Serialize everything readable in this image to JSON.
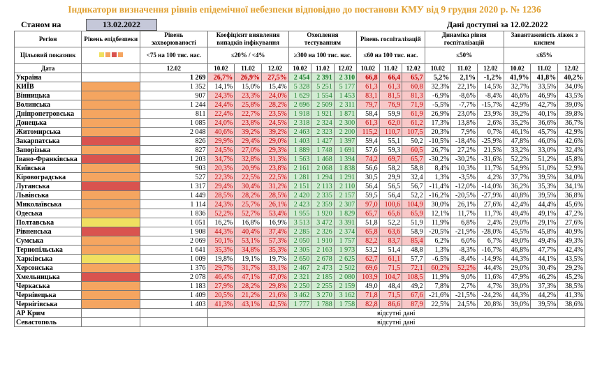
{
  "title": "Індикатори визначення рівнів епідемічної небезпеки відповідно до постанови КМУ від 9 грудня 2020 р. № 1236",
  "stanom_label": "Станом на",
  "stanom_date": "13.02.2022",
  "available_label": "Дані доступні за 12.02.2022",
  "headers": {
    "region": "Регіон",
    "indicator": "Цільовий показник",
    "date": "Дата",
    "level": "Рівень епідбезпеки",
    "incidence": "Рівень захворюваності",
    "incidence_target": "<75 на 100 тис. нас.",
    "detect": "Коефіцієнт виявлення випадків інфікування",
    "detect_target": "≤20% / <4%",
    "testing": "Охоплення тестуванням",
    "testing_target": "≥300 на 100 тис. нас.",
    "hosp": "Рівень госпіталізацій",
    "hosp_target": "≤60 на 100 тис. нас.",
    "dyn": "Динаміка рівня госпіталізацій",
    "dyn_target": "≤50%",
    "load": "Завантаженість ліжок з киснем",
    "load_target": "≤65%",
    "d1": "12.02",
    "d10": "10.02",
    "d11": "11.02",
    "d12": "12.02"
  },
  "rows": [
    {
      "name": "Україна",
      "level": "",
      "inc": "1 269",
      "det": [
        "26,7%",
        "26,9%",
        "27,5%"
      ],
      "test": [
        "2 454",
        "2 391",
        "2 310"
      ],
      "hosp": [
        "66,8",
        "66,4",
        "65,7"
      ],
      "dyn": [
        "5,2%",
        "2,1%",
        "-1,2%"
      ],
      "load": [
        "41,9%",
        "41,8%",
        "40,2%"
      ]
    },
    {
      "name": "КИЇВ",
      "level": "orange",
      "inc": "1 352",
      "det": [
        "14,1%",
        "15,0%",
        "15,4%"
      ],
      "test": [
        "5 328",
        "5 251",
        "5 177"
      ],
      "hosp": [
        "61,3",
        "61,3",
        "60,8"
      ],
      "dyn": [
        "32,3%",
        "22,1%",
        "14,5%"
      ],
      "load": [
        "32,7%",
        "33,5%",
        "34,0%"
      ]
    },
    {
      "name": "Вінницька",
      "level": "orange",
      "inc": "907",
      "det": [
        "24,3%",
        "23,3%",
        "24,0%"
      ],
      "test": [
        "1 629",
        "1 554",
        "1 453"
      ],
      "hosp": [
        "83,1",
        "81,5",
        "81,3"
      ],
      "dyn": [
        "-6,9%",
        "-8,6%",
        "-8,4%"
      ],
      "load": [
        "46,6%",
        "46,9%",
        "43,5%"
      ]
    },
    {
      "name": "Волинська",
      "level": "orange",
      "inc": "1 244",
      "det": [
        "24,4%",
        "25,8%",
        "28,2%"
      ],
      "test": [
        "2 696",
        "2 509",
        "2 311"
      ],
      "hosp": [
        "79,7",
        "76,9",
        "71,9"
      ],
      "dyn": [
        "-5,5%",
        "-7,7%",
        "-15,7%"
      ],
      "load": [
        "42,9%",
        "42,7%",
        "39,0%"
      ]
    },
    {
      "name": "Дніпропетровська",
      "level": "orange",
      "inc": "811",
      "det": [
        "22,4%",
        "22,7%",
        "23,5%"
      ],
      "test": [
        "1 918",
        "1 921",
        "1 871"
      ],
      "hosp": [
        "58,4",
        "59,9",
        "61,9"
      ],
      "dyn": [
        "26,9%",
        "23,0%",
        "23,9%"
      ],
      "load": [
        "39,2%",
        "40,1%",
        "39,8%"
      ]
    },
    {
      "name": "Донецька",
      "level": "orange",
      "inc": "1 085",
      "det": [
        "24,0%",
        "23,8%",
        "24,5%"
      ],
      "test": [
        "2 318",
        "2 324",
        "2 300"
      ],
      "hosp": [
        "61,3",
        "62,0",
        "61,2"
      ],
      "dyn": [
        "17,3%",
        "13,8%",
        "2,6%"
      ],
      "load": [
        "35,2%",
        "36,6%",
        "36,7%"
      ]
    },
    {
      "name": "Житомирська",
      "level": "orange",
      "inc": "2 048",
      "det": [
        "40,6%",
        "39,2%",
        "39,2%"
      ],
      "test": [
        "2 463",
        "2 323",
        "2 200"
      ],
      "hosp": [
        "115,2",
        "110,7",
        "107,5"
      ],
      "dyn": [
        "20,3%",
        "7,9%",
        "0,7%"
      ],
      "load": [
        "46,1%",
        "45,7%",
        "42,9%"
      ]
    },
    {
      "name": "Закарпатська",
      "level": "red",
      "inc": "826",
      "det": [
        "29,9%",
        "29,4%",
        "29,0%"
      ],
      "test": [
        "1 403",
        "1 427",
        "1 397"
      ],
      "hosp": [
        "59,4",
        "55,1",
        "50,2"
      ],
      "dyn": [
        "-10,5%",
        "-18,4%",
        "-25,9%"
      ],
      "load": [
        "47,8%",
        "46,0%",
        "42,6%"
      ]
    },
    {
      "name": "Запорізька",
      "level": "orange",
      "inc": "827",
      "det": [
        "24,5%",
        "27,0%",
        "29,3%"
      ],
      "test": [
        "1 889",
        "1 748",
        "1 691"
      ],
      "hosp": [
        "57,6",
        "59,3",
        "60,5"
      ],
      "dyn": [
        "26,7%",
        "27,2%",
        "21,5%"
      ],
      "load": [
        "33,2%",
        "33,0%",
        "32,4%"
      ]
    },
    {
      "name": "Івано-Франківська",
      "level": "red",
      "inc": "1 203",
      "det": [
        "34,7%",
        "32,8%",
        "31,3%"
      ],
      "test": [
        "1 563",
        "1 468",
        "1 394"
      ],
      "hosp": [
        "74,2",
        "69,7",
        "65,7"
      ],
      "dyn": [
        "-30,2%",
        "-30,2%",
        "-31,6%"
      ],
      "load": [
        "52,2%",
        "51,2%",
        "45,8%"
      ]
    },
    {
      "name": "Київська",
      "level": "orange",
      "inc": "903",
      "det": [
        "20,3%",
        "20,9%",
        "23,8%"
      ],
      "test": [
        "2 161",
        "2 068",
        "1 838"
      ],
      "hosp": [
        "56,6",
        "58,2",
        "58,8"
      ],
      "dyn": [
        "8,4%",
        "10,3%",
        "11,7%"
      ],
      "load": [
        "54,9%",
        "51,0%",
        "52,9%"
      ]
    },
    {
      "name": "Кіровоградська",
      "level": "orange",
      "inc": "527",
      "det": [
        "22,3%",
        "22,5%",
        "22,5%"
      ],
      "test": [
        "1 281",
        "1 294",
        "1 291"
      ],
      "hosp": [
        "30,5",
        "29,9",
        "32,4"
      ],
      "dyn": [
        "1,3%",
        "-3,5%",
        "4,2%"
      ],
      "load": [
        "37,7%",
        "39,5%",
        "34,0%"
      ]
    },
    {
      "name": "Луганська",
      "level": "red",
      "inc": "1 317",
      "det": [
        "29,4%",
        "30,4%",
        "31,2%"
      ],
      "test": [
        "2 151",
        "2 113",
        "2 110"
      ],
      "hosp": [
        "56,4",
        "56,5",
        "56,7"
      ],
      "dyn": [
        "-11,4%",
        "-12,0%",
        "-14,0%"
      ],
      "load": [
        "36,2%",
        "35,3%",
        "34,1%"
      ]
    },
    {
      "name": "Львівська",
      "level": "orange",
      "inc": "1 449",
      "det": [
        "28,5%",
        "28,2%",
        "28,5%"
      ],
      "test": [
        "2 420",
        "2 335",
        "2 157"
      ],
      "hosp": [
        "59,5",
        "56,4",
        "52,2"
      ],
      "dyn": [
        "-16,2%",
        "-20,5%",
        "-27,9%"
      ],
      "load": [
        "40,8%",
        "39,5%",
        "36,8%"
      ]
    },
    {
      "name": "Миколаївська",
      "level": "orange",
      "inc": "1 114",
      "det": [
        "24,3%",
        "25,7%",
        "26,1%"
      ],
      "test": [
        "2 423",
        "2 359",
        "2 307"
      ],
      "hosp": [
        "97,0",
        "100,6",
        "104,9"
      ],
      "dyn": [
        "30,0%",
        "26,1%",
        "27,6%"
      ],
      "load": [
        "42,4%",
        "44,4%",
        "45,6%"
      ]
    },
    {
      "name": "Одеська",
      "level": "orange",
      "inc": "1 836",
      "det": [
        "52,2%",
        "52,7%",
        "53,4%"
      ],
      "test": [
        "1 955",
        "1 920",
        "1 829"
      ],
      "hosp": [
        "65,7",
        "65,6",
        "65,9"
      ],
      "dyn": [
        "12,1%",
        "11,7%",
        "11,7%"
      ],
      "load": [
        "49,4%",
        "49,1%",
        "47,2%"
      ]
    },
    {
      "name": "Полтавська",
      "level": "yellow",
      "inc": "1 051",
      "det": [
        "16,2%",
        "16,8%",
        "16,9%"
      ],
      "test": [
        "3 513",
        "3 472",
        "3 391"
      ],
      "hosp": [
        "51,8",
        "52,2",
        "51,9"
      ],
      "dyn": [
        "11,9%",
        "6,8%",
        "2,4%"
      ],
      "load": [
        "29,0%",
        "29,1%",
        "27,6%"
      ]
    },
    {
      "name": "Рівненська",
      "level": "red",
      "inc": "1 908",
      "det": [
        "44,3%",
        "40,4%",
        "37,4%"
      ],
      "test": [
        "2 285",
        "2 326",
        "2 374"
      ],
      "hosp": [
        "65,8",
        "63,6",
        "58,9"
      ],
      "dyn": [
        "-20,5%",
        "-21,9%",
        "-28,0%"
      ],
      "load": [
        "45,5%",
        "45,8%",
        "40,9%"
      ]
    },
    {
      "name": "Сумська",
      "level": "orange",
      "inc": "2 069",
      "det": [
        "50,1%",
        "53,1%",
        "57,3%"
      ],
      "test": [
        "2 050",
        "1 910",
        "1 757"
      ],
      "hosp": [
        "82,2",
        "83,7",
        "85,4"
      ],
      "dyn": [
        "6,2%",
        "6,0%",
        "6,7%"
      ],
      "load": [
        "49,0%",
        "49,4%",
        "49,3%"
      ]
    },
    {
      "name": "Тернопільська",
      "level": "orange",
      "inc": "1 641",
      "det": [
        "35,3%",
        "34,8%",
        "35,3%"
      ],
      "test": [
        "2 305",
        "2 163",
        "1 973"
      ],
      "hosp": [
        "53,2",
        "51,4",
        "48,8"
      ],
      "dyn": [
        "1,3%",
        "-8,3%",
        "-16,7%"
      ],
      "load": [
        "46,8%",
        "47,7%",
        "42,4%"
      ]
    },
    {
      "name": "Харківська",
      "level": "yellow",
      "inc": "1 009",
      "det": [
        "19,8%",
        "19,1%",
        "19,7%"
      ],
      "test": [
        "2 650",
        "2 678",
        "2 625"
      ],
      "hosp": [
        "62,7",
        "61,1",
        "57,7"
      ],
      "dyn": [
        "-6,5%",
        "-8,4%",
        "-14,9%"
      ],
      "load": [
        "44,3%",
        "44,1%",
        "43,5%"
      ]
    },
    {
      "name": "Херсонська",
      "level": "orange",
      "inc": "1 376",
      "det": [
        "29,7%",
        "31,7%",
        "33,1%"
      ],
      "test": [
        "2 467",
        "2 473",
        "2 502"
      ],
      "hosp": [
        "69,6",
        "71,5",
        "72,1"
      ],
      "dyn": [
        "60,2%",
        "52,2%",
        "44,4%"
      ],
      "load": [
        "29,0%",
        "30,4%",
        "29,2%"
      ]
    },
    {
      "name": "Хмельницька",
      "level": "red",
      "inc": "2 078",
      "det": [
        "46,4%",
        "47,1%",
        "47,0%"
      ],
      "test": [
        "2 321",
        "2 185",
        "2 080"
      ],
      "hosp": [
        "103,9",
        "104,7",
        "108,5"
      ],
      "dyn": [
        "11,9%",
        "9,0%",
        "11,6%"
      ],
      "load": [
        "47,9%",
        "46,2%",
        "45,2%"
      ]
    },
    {
      "name": "Черкаська",
      "level": "orange",
      "inc": "1 183",
      "det": [
        "27,9%",
        "28,2%",
        "29,8%"
      ],
      "test": [
        "2 250",
        "2 255",
        "2 159"
      ],
      "hosp": [
        "49,0",
        "48,4",
        "49,2"
      ],
      "dyn": [
        "7,8%",
        "2,7%",
        "4,7%"
      ],
      "load": [
        "39,0%",
        "37,3%",
        "38,5%"
      ]
    },
    {
      "name": "Чернівецька",
      "level": "orange",
      "inc": "1 409",
      "det": [
        "20,5%",
        "21,2%",
        "21,6%"
      ],
      "test": [
        "3 462",
        "3 270",
        "3 162"
      ],
      "hosp": [
        "71,8",
        "71,5",
        "67,6"
      ],
      "dyn": [
        "-21,6%",
        "-21,5%",
        "-24,2%"
      ],
      "load": [
        "44,3%",
        "44,2%",
        "41,3%"
      ]
    },
    {
      "name": "Чернігівська",
      "level": "orange",
      "inc": "1 403",
      "det": [
        "41,3%",
        "43,1%",
        "42,5%"
      ],
      "test": [
        "1 777",
        "1 788",
        "1 758"
      ],
      "hosp": [
        "82,8",
        "86,6",
        "87,9"
      ],
      "dyn": [
        "22,5%",
        "24,5%",
        "20,8%"
      ],
      "load": [
        "39,0%",
        "39,5%",
        "38,6%"
      ]
    }
  ],
  "missing_rows": [
    {
      "name": "АР Крим",
      "text": "відсутні дані"
    },
    {
      "name": "Севастополь",
      "text": "відсутні дані"
    }
  ]
}
